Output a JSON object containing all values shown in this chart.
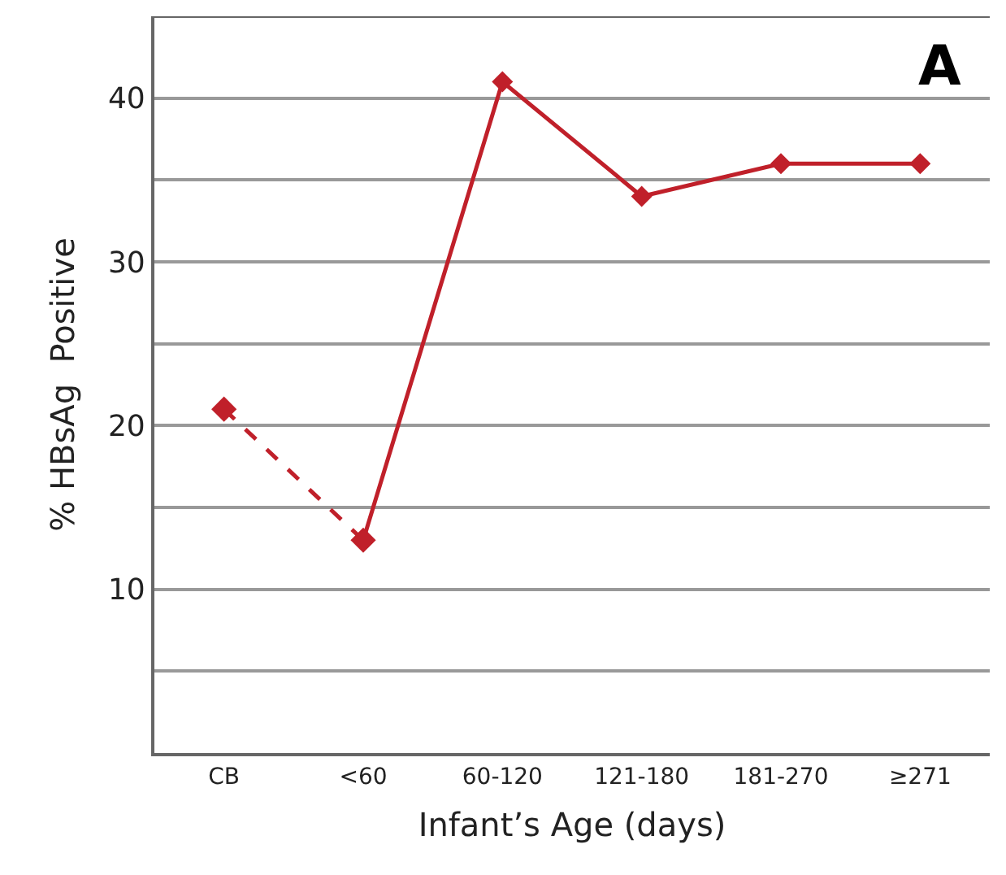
{
  "chart_data": {
    "type": "line",
    "xlabel": "Infant’s Age (days)",
    "ylabel": "% HBsAg  Positive",
    "categories": [
      "CB",
      "<60",
      "60-120",
      "121-180",
      "181-270",
      "≥271"
    ],
    "series": [
      {
        "color": "#c0202a",
        "values": [
          21,
          13,
          null,
          null,
          null,
          null
        ],
        "line_style": "dashed"
      },
      {
        "color": "#c0202a",
        "values": [
          null,
          13,
          41,
          34,
          36,
          36
        ],
        "line_style": "solid"
      }
    ],
    "ylim": [
      0,
      45
    ],
    "yticks": [
      {
        "value": 5,
        "label": null
      },
      10,
      {
        "value": 15,
        "label": null
      },
      20,
      {
        "value": 25,
        "label": null
      },
      30,
      {
        "value": 35,
        "label": null
      },
      40
    ],
    "grid": "y",
    "marker": "diamond",
    "annotations": [
      "A"
    ]
  }
}
